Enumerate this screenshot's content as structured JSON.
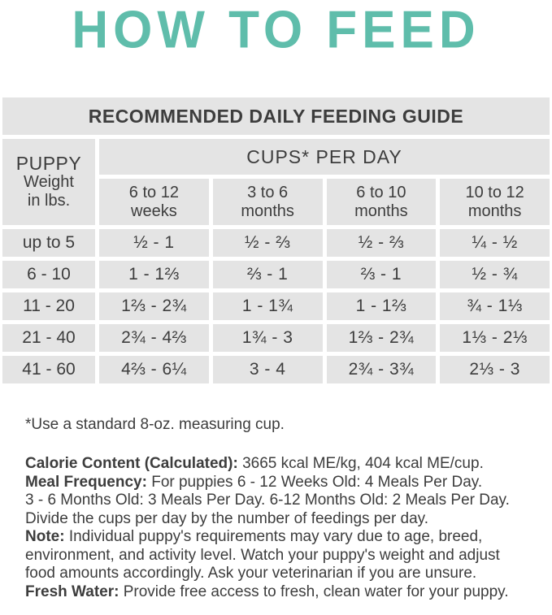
{
  "colors": {
    "accent_teal": "#5fbdab",
    "cell_gray": "#e4e4e4",
    "text_dark": "#3d3d3d"
  },
  "page_title": "HOW TO FEED",
  "table": {
    "band_title": "RECOMMENDED DAILY FEEDING GUIDE",
    "weight_header": {
      "line1": "PUPPY",
      "line2": "Weight",
      "line3": "in lbs."
    },
    "cups_header": "CUPS* PER DAY",
    "age_columns": [
      {
        "top": "6 to 12",
        "bottom": "weeks"
      },
      {
        "top": "3 to 6",
        "bottom": "months"
      },
      {
        "top": "6 to 10",
        "bottom": "months"
      },
      {
        "top": "10 to 12",
        "bottom": "months"
      }
    ],
    "rows": [
      {
        "weight": "up to 5",
        "cells": [
          "½ - 1",
          "½ - ⅔",
          "½ - ⅔",
          "¼ - ½"
        ]
      },
      {
        "weight": "6 - 10",
        "cells": [
          "1 - 1⅔",
          "⅔ - 1",
          "⅔ - 1",
          "½ - ¾"
        ]
      },
      {
        "weight": "11 - 20",
        "cells": [
          "1⅔ - 2¾",
          "1 - 1¾",
          "1 - 1⅔",
          "¾ - 1⅓"
        ]
      },
      {
        "weight": "21 - 40",
        "cells": [
          "2¾ - 4⅔",
          "1¾ - 3",
          "1⅔ - 2¾",
          "1⅓ - 2⅓"
        ]
      },
      {
        "weight": "41 - 60",
        "cells": [
          "4⅔ - 6¼",
          "3 - 4",
          "2¾ - 3¾",
          "2⅓ - 3"
        ]
      }
    ]
  },
  "footnote": "*Use a standard 8-oz. measuring cup.",
  "notes": [
    {
      "bold": "Calorie Content (Calculated):",
      "rest": " 3665 kcal ME/kg, 404 kcal ME/cup."
    },
    {
      "bold": "Meal Frequency:",
      "rest": " For puppies 6 - 12 Weeks Old: 4 Meals Per Day."
    },
    {
      "bold": "",
      "rest": "3 - 6 Months Old: 3 Meals Per Day. 6-12 Months Old: 2 Meals Per Day."
    },
    {
      "bold": "",
      "rest": "Divide the cups per day by the number of feedings per day."
    },
    {
      "bold": "Note:",
      "rest": "  Individual puppy's requirements may vary due to age, breed,"
    },
    {
      "bold": "",
      "rest": "environment,  and activity level. Watch your puppy's weight and adjust"
    },
    {
      "bold": "",
      "rest": "food amounts accordingly. Ask your veterinarian if you are unsure."
    },
    {
      "bold": "Fresh Water:",
      "rest": " Provide free access to fresh, clean water for your puppy."
    }
  ]
}
